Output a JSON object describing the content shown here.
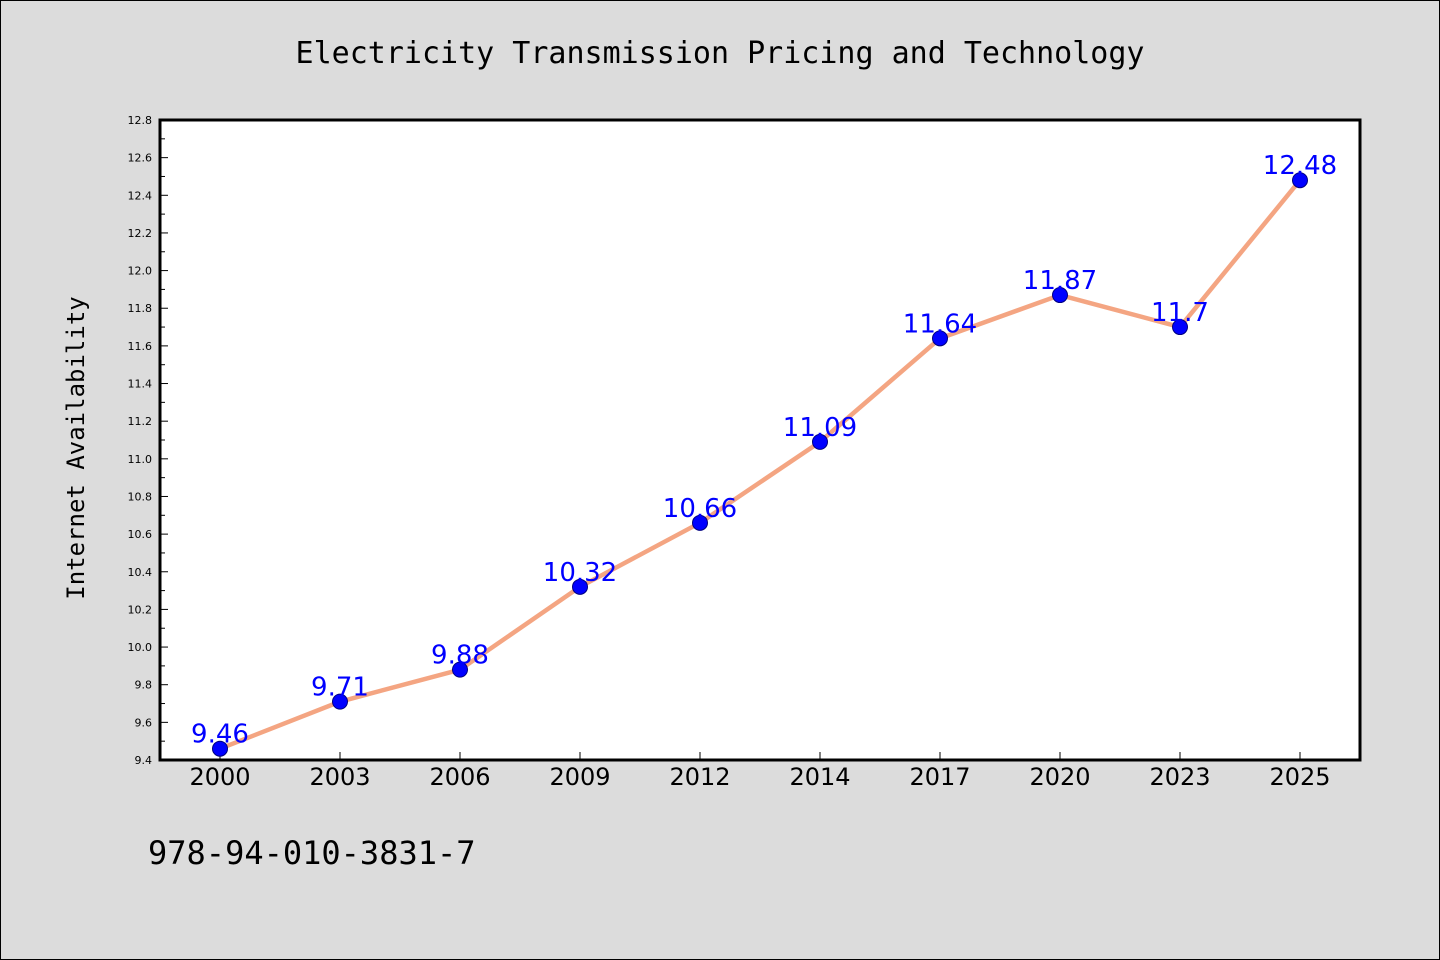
{
  "chart_data": {
    "type": "line",
    "title": "Electricity Transmission Pricing and Technology",
    "xlabel": "",
    "ylabel": "Internet Availability",
    "categories": [
      "2000",
      "2003",
      "2006",
      "2009",
      "2012",
      "2014",
      "2017",
      "2020",
      "2023",
      "2025"
    ],
    "series": [
      {
        "values": [
          9.46,
          9.71,
          9.88,
          10.32,
          10.66,
          11.09,
          11.64,
          11.87,
          11.7,
          12.48
        ],
        "data_labels": [
          "9.46",
          "9.71",
          "9.88",
          "10.32",
          "10.66",
          "11.09",
          "11.64",
          "11.87",
          "11.7",
          "12.48"
        ]
      }
    ],
    "ylim": [
      9.4,
      12.8
    ],
    "yticks": [
      9.4,
      9.6,
      9.8,
      10.0,
      10.2,
      10.4,
      10.6,
      10.8,
      11.0,
      11.2,
      11.4,
      11.6,
      11.8,
      12.0,
      12.2,
      12.4,
      12.6,
      12.8
    ],
    "ytick_labels": [
      "9.4",
      "9.6",
      "9.8",
      "10.0",
      "10.2",
      "10.4",
      "10.6",
      "10.8",
      "11.0",
      "11.2",
      "11.4",
      "11.6",
      "11.8",
      "12.0",
      "12.2",
      "12.4",
      "12.6",
      "12.8"
    ],
    "grid": false,
    "colors": {
      "line": "#f4a582",
      "marker": "#0000ff",
      "marker_edge": "#000080",
      "data_label": "#0000ff",
      "figure_background": "#dcdcdc",
      "plot_background": "#ffffff"
    }
  },
  "footer": {
    "isbn": "978-94-010-3831-7"
  }
}
